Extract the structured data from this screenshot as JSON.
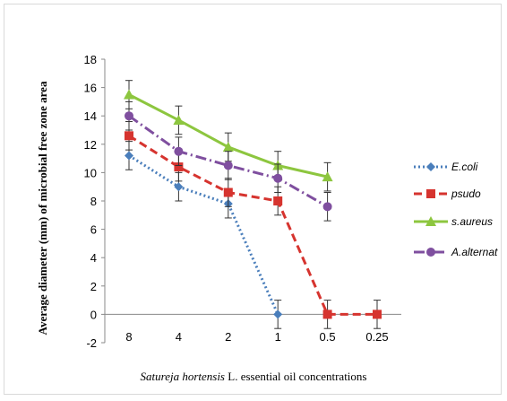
{
  "chart_data": {
    "type": "line",
    "categories": [
      "8",
      "4",
      "2",
      "1",
      "0.5",
      "0.25"
    ],
    "ylim": [
      -2,
      18
    ],
    "yticks": [
      "18",
      "16",
      "14",
      "12",
      "10",
      "8",
      "6",
      "4",
      "2",
      "0",
      "-2"
    ],
    "ylabel": "Average diameter (mm) of microbial free zone area",
    "xlabel_italic": "Satureja hortensis",
    "xlabel_rest": " L. essential oil concentrations",
    "grid": false,
    "legend_position": "right",
    "series": [
      {
        "name": "E.coli",
        "color": "#4a7ebb",
        "marker": "diamond",
        "dash": "2,3",
        "values": [
          11.2,
          9.0,
          7.8,
          0,
          null,
          null
        ],
        "err": [
          1,
          1,
          1,
          1,
          null,
          null
        ]
      },
      {
        "name": "psudo",
        "color": "#d6342f",
        "marker": "square",
        "dash": "9,5",
        "values": [
          12.6,
          10.4,
          8.6,
          8.0,
          0,
          0
        ],
        "err": [
          1,
          1,
          1,
          1,
          1,
          1
        ]
      },
      {
        "name": "s.aureus",
        "color": "#8dc63f",
        "marker": "triangle",
        "dash": "",
        "values": [
          15.5,
          13.7,
          11.8,
          10.5,
          9.7,
          null
        ],
        "err": [
          1,
          1,
          1,
          1,
          1,
          null
        ]
      },
      {
        "name": "A.alternat",
        "color": "#7f4f9f",
        "marker": "circle",
        "dash": "12,4,2,4",
        "values": [
          14.0,
          11.5,
          10.5,
          9.6,
          7.6,
          null
        ],
        "err": [
          1,
          1,
          1,
          1,
          1,
          null
        ]
      }
    ]
  }
}
